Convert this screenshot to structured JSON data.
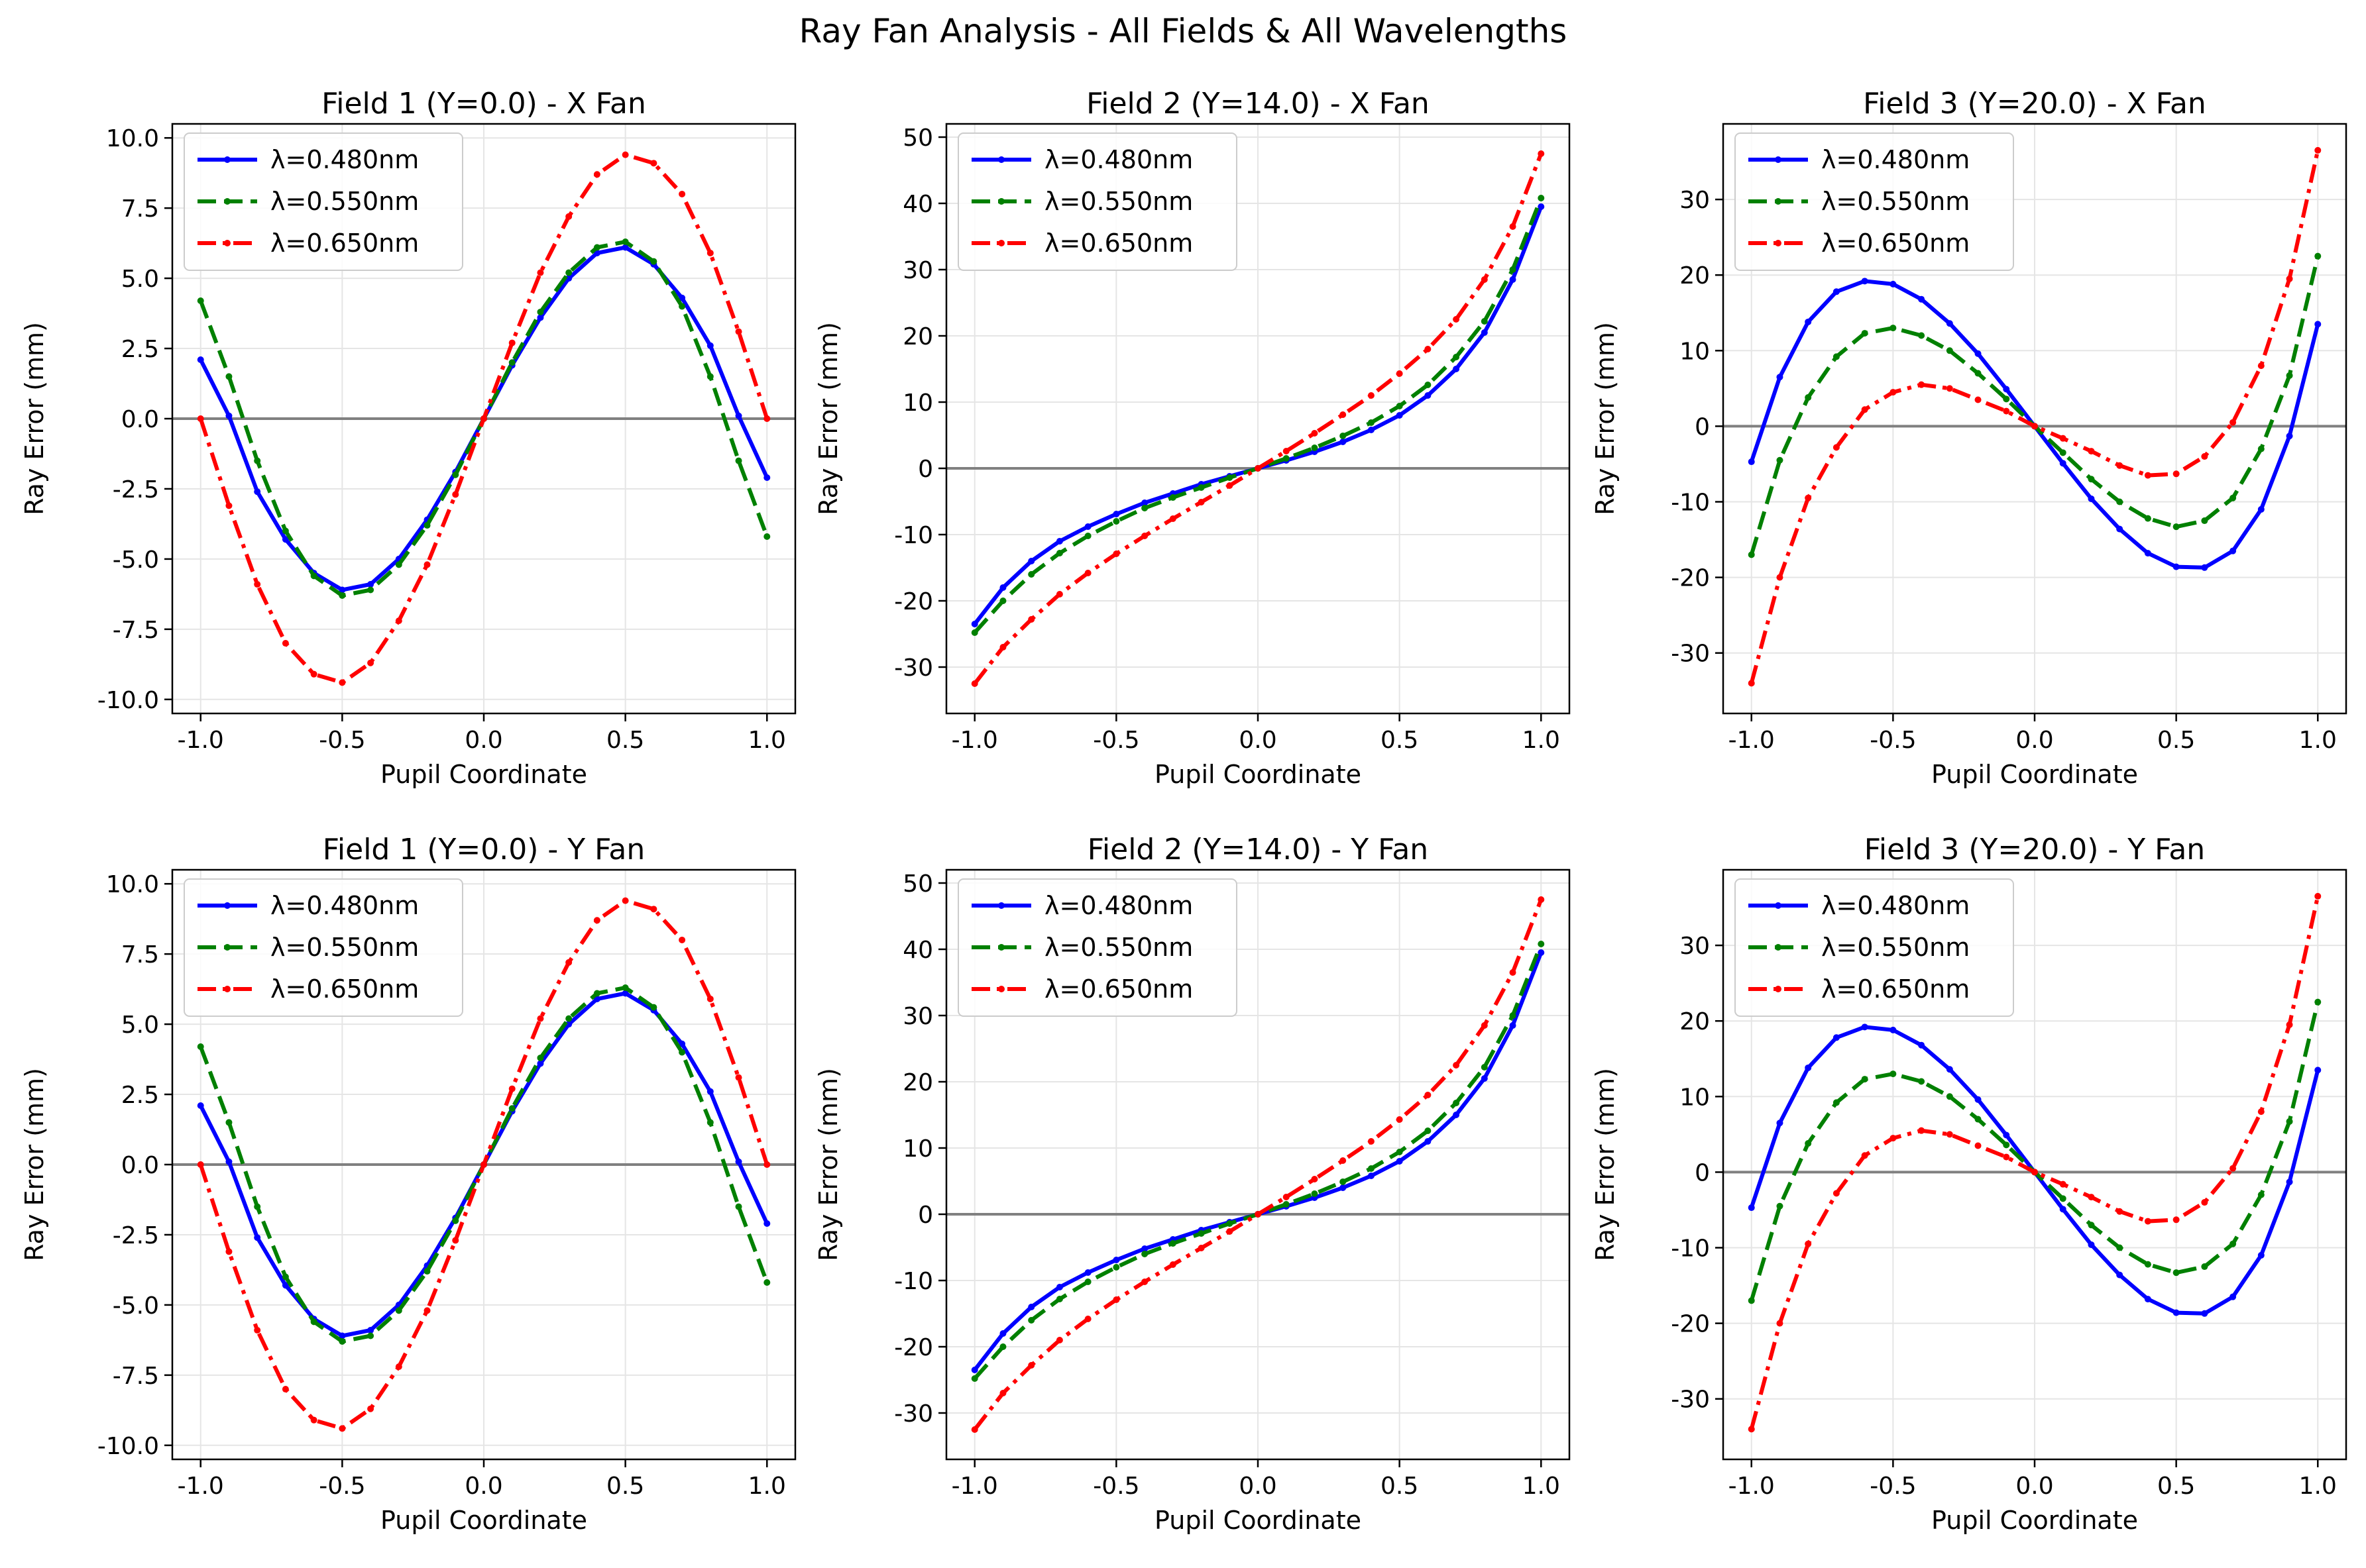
{
  "figure_title": "Ray Fan Analysis - All Fields & All Wavelengths",
  "colors": {
    "wl_480": "#0000ff",
    "wl_550": "#008000",
    "wl_650": "#ff0000",
    "zero_line": "#808080",
    "grid": "#e5e5e5"
  },
  "chart_data": [
    {
      "type": "line",
      "title": "Field 1 (Y=0.0) - X Fan",
      "xlabel": "Pupil Coordinate",
      "ylabel": "Ray Error (mm)",
      "xlim": [
        -1.1,
        1.1
      ],
      "ylim": [
        -10.5,
        10.5
      ],
      "xticks": [
        -1.0,
        -0.5,
        0.0,
        0.5,
        1.0
      ],
      "xtick_labels": [
        "-1.0",
        "-0.5",
        "0.0",
        "0.5",
        "1.0"
      ],
      "yticks": [
        -10,
        -7.5,
        -5,
        -2.5,
        0,
        2.5,
        5,
        7.5,
        10
      ],
      "ytick_labels": [
        "-10.0",
        "-7.5",
        "-5.0",
        "-2.5",
        "0.0",
        "2.5",
        "5.0",
        "7.5",
        "10.0"
      ],
      "grid": true,
      "legend": "top-left",
      "x": [
        -1.0,
        -0.9,
        -0.8,
        -0.7,
        -0.6,
        -0.5,
        -0.4,
        -0.3,
        -0.2,
        -0.1,
        0.0,
        0.1,
        0.2,
        0.3,
        0.4,
        0.5,
        0.6,
        0.7,
        0.8,
        0.9,
        1.0
      ],
      "series": [
        {
          "name": "λ=0.480nm",
          "color": "#0000ff",
          "dash": "solid",
          "values": [
            2.1,
            0.1,
            -2.6,
            -4.3,
            -5.5,
            -6.1,
            -5.9,
            -5.0,
            -3.6,
            -1.9,
            0.0,
            1.9,
            3.6,
            5.0,
            5.9,
            6.1,
            5.5,
            4.3,
            2.6,
            0.1,
            -2.1
          ]
        },
        {
          "name": "λ=0.550nm",
          "color": "#008000",
          "dash": "dashed",
          "values": [
            4.2,
            1.5,
            -1.5,
            -4.0,
            -5.6,
            -6.3,
            -6.1,
            -5.2,
            -3.8,
            -2.0,
            0.0,
            2.0,
            3.8,
            5.2,
            6.1,
            6.3,
            5.6,
            4.0,
            1.5,
            -1.5,
            -4.2
          ]
        },
        {
          "name": "λ=0.650nm",
          "color": "#ff0000",
          "dash": "dashdot",
          "values": [
            0.0,
            -3.1,
            -5.9,
            -8.0,
            -9.1,
            -9.4,
            -8.7,
            -7.2,
            -5.2,
            -2.7,
            0.0,
            2.7,
            5.2,
            7.2,
            8.7,
            9.4,
            9.1,
            8.0,
            5.9,
            3.1,
            0.0
          ]
        }
      ]
    },
    {
      "type": "line",
      "title": "Field 2 (Y=14.0) - X Fan",
      "xlabel": "Pupil Coordinate",
      "ylabel": "Ray Error (mm)",
      "xlim": [
        -1.1,
        1.1
      ],
      "ylim": [
        -37,
        52
      ],
      "xticks": [
        -1.0,
        -0.5,
        0.0,
        0.5,
        1.0
      ],
      "xtick_labels": [
        "-1.0",
        "-0.5",
        "0.0",
        "0.5",
        "1.0"
      ],
      "yticks": [
        -30,
        -20,
        -10,
        0,
        10,
        20,
        30,
        40,
        50
      ],
      "ytick_labels": [
        "-30",
        "-20",
        "-10",
        "0",
        "10",
        "20",
        "30",
        "40",
        "50"
      ],
      "grid": true,
      "legend": "top-left",
      "x": [
        -1.0,
        -0.9,
        -0.8,
        -0.7,
        -0.6,
        -0.5,
        -0.4,
        -0.3,
        -0.2,
        -0.1,
        0.0,
        0.1,
        0.2,
        0.3,
        0.4,
        0.5,
        0.6,
        0.7,
        0.8,
        0.9,
        1.0
      ],
      "series": [
        {
          "name": "λ=0.480nm",
          "color": "#0000ff",
          "dash": "solid",
          "values": [
            -23.5,
            -18.0,
            -14.0,
            -11.0,
            -8.8,
            -6.9,
            -5.2,
            -3.8,
            -2.4,
            -1.2,
            0.0,
            1.2,
            2.5,
            4.0,
            5.8,
            8.0,
            11.0,
            15.0,
            20.5,
            28.5,
            39.5
          ]
        },
        {
          "name": "λ=0.550nm",
          "color": "#008000",
          "dash": "dashed",
          "values": [
            -24.8,
            -20.0,
            -16.0,
            -12.8,
            -10.2,
            -8.0,
            -6.0,
            -4.4,
            -2.9,
            -1.4,
            0.0,
            1.5,
            3.1,
            4.9,
            6.9,
            9.4,
            12.6,
            16.8,
            22.2,
            30.0,
            40.8
          ]
        },
        {
          "name": "λ=0.650nm",
          "color": "#ff0000",
          "dash": "dashdot",
          "values": [
            -32.5,
            -27.0,
            -22.8,
            -19.0,
            -15.8,
            -12.9,
            -10.2,
            -7.6,
            -5.1,
            -2.6,
            0.0,
            2.6,
            5.3,
            8.1,
            11.0,
            14.3,
            18.0,
            22.5,
            28.5,
            36.5,
            47.5
          ]
        }
      ]
    },
    {
      "type": "line",
      "title": "Field 3 (Y=20.0) - X Fan",
      "xlabel": "Pupil Coordinate",
      "ylabel": "Ray Error (mm)",
      "xlim": [
        -1.1,
        1.1
      ],
      "ylim": [
        -38,
        40
      ],
      "xticks": [
        -1.0,
        -0.5,
        0.0,
        0.5,
        1.0
      ],
      "xtick_labels": [
        "-1.0",
        "-0.5",
        "0.0",
        "0.5",
        "1.0"
      ],
      "yticks": [
        -30,
        -20,
        -10,
        0,
        10,
        20,
        30
      ],
      "ytick_labels": [
        "-30",
        "-20",
        "-10",
        "0",
        "10",
        "20",
        "30"
      ],
      "grid": true,
      "legend": "top-left",
      "x": [
        -1.0,
        -0.9,
        -0.8,
        -0.7,
        -0.6,
        -0.5,
        -0.4,
        -0.3,
        -0.2,
        -0.1,
        0.0,
        0.1,
        0.2,
        0.3,
        0.4,
        0.5,
        0.6,
        0.7,
        0.8,
        0.9,
        1.0
      ],
      "series": [
        {
          "name": "λ=0.480nm",
          "color": "#0000ff",
          "dash": "solid",
          "values": [
            -4.7,
            6.5,
            13.8,
            17.8,
            19.2,
            18.8,
            16.8,
            13.6,
            9.6,
            4.9,
            0.0,
            -4.9,
            -9.6,
            -13.6,
            -16.8,
            -18.6,
            -18.7,
            -16.5,
            -11.0,
            -1.3,
            13.5
          ]
        },
        {
          "name": "λ=0.550nm",
          "color": "#008000",
          "dash": "dashed",
          "values": [
            -17.0,
            -4.5,
            3.8,
            9.2,
            12.3,
            13.0,
            12.0,
            10.0,
            7.0,
            3.6,
            0.0,
            -3.5,
            -7.0,
            -10.0,
            -12.2,
            -13.3,
            -12.5,
            -9.5,
            -3.0,
            6.7,
            22.5
          ]
        },
        {
          "name": "λ=0.650nm",
          "color": "#ff0000",
          "dash": "dashdot",
          "values": [
            -34.0,
            -20.0,
            -9.5,
            -2.8,
            2.2,
            4.5,
            5.5,
            5.0,
            3.5,
            2.0,
            0.0,
            -1.6,
            -3.3,
            -5.2,
            -6.5,
            -6.3,
            -4.0,
            0.5,
            8.0,
            19.5,
            36.5
          ]
        }
      ]
    },
    {
      "type": "line",
      "title": "Field 1 (Y=0.0) - Y Fan",
      "xlabel": "Pupil Coordinate",
      "ylabel": "Ray Error (mm)",
      "xlim": [
        -1.1,
        1.1
      ],
      "ylim": [
        -10.5,
        10.5
      ],
      "xticks": [
        -1.0,
        -0.5,
        0.0,
        0.5,
        1.0
      ],
      "xtick_labels": [
        "-1.0",
        "-0.5",
        "0.0",
        "0.5",
        "1.0"
      ],
      "yticks": [
        -10,
        -7.5,
        -5,
        -2.5,
        0,
        2.5,
        5,
        7.5,
        10
      ],
      "ytick_labels": [
        "-10.0",
        "-7.5",
        "-5.0",
        "-2.5",
        "0.0",
        "2.5",
        "5.0",
        "7.5",
        "10.0"
      ],
      "grid": true,
      "legend": "top-left",
      "x": [
        -1.0,
        -0.9,
        -0.8,
        -0.7,
        -0.6,
        -0.5,
        -0.4,
        -0.3,
        -0.2,
        -0.1,
        0.0,
        0.1,
        0.2,
        0.3,
        0.4,
        0.5,
        0.6,
        0.7,
        0.8,
        0.9,
        1.0
      ],
      "series": [
        {
          "name": "λ=0.480nm",
          "color": "#0000ff",
          "dash": "solid",
          "values": [
            2.1,
            0.1,
            -2.6,
            -4.3,
            -5.5,
            -6.1,
            -5.9,
            -5.0,
            -3.6,
            -1.9,
            0.0,
            1.9,
            3.6,
            5.0,
            5.9,
            6.1,
            5.5,
            4.3,
            2.6,
            0.1,
            -2.1
          ]
        },
        {
          "name": "λ=0.550nm",
          "color": "#008000",
          "dash": "dashed",
          "values": [
            4.2,
            1.5,
            -1.5,
            -4.0,
            -5.6,
            -6.3,
            -6.1,
            -5.2,
            -3.8,
            -2.0,
            0.0,
            2.0,
            3.8,
            5.2,
            6.1,
            6.3,
            5.6,
            4.0,
            1.5,
            -1.5,
            -4.2
          ]
        },
        {
          "name": "λ=0.650nm",
          "color": "#ff0000",
          "dash": "dashdot",
          "values": [
            0.0,
            -3.1,
            -5.9,
            -8.0,
            -9.1,
            -9.4,
            -8.7,
            -7.2,
            -5.2,
            -2.7,
            0.0,
            2.7,
            5.2,
            7.2,
            8.7,
            9.4,
            9.1,
            8.0,
            5.9,
            3.1,
            0.0
          ]
        }
      ]
    },
    {
      "type": "line",
      "title": "Field 2 (Y=14.0) - Y Fan",
      "xlabel": "Pupil Coordinate",
      "ylabel": "Ray Error (mm)",
      "xlim": [
        -1.1,
        1.1
      ],
      "ylim": [
        -37,
        52
      ],
      "xticks": [
        -1.0,
        -0.5,
        0.0,
        0.5,
        1.0
      ],
      "xtick_labels": [
        "-1.0",
        "-0.5",
        "0.0",
        "0.5",
        "1.0"
      ],
      "yticks": [
        -30,
        -20,
        -10,
        0,
        10,
        20,
        30,
        40,
        50
      ],
      "ytick_labels": [
        "-30",
        "-20",
        "-10",
        "0",
        "10",
        "20",
        "30",
        "40",
        "50"
      ],
      "grid": true,
      "legend": "top-left",
      "x": [
        -1.0,
        -0.9,
        -0.8,
        -0.7,
        -0.6,
        -0.5,
        -0.4,
        -0.3,
        -0.2,
        -0.1,
        0.0,
        0.1,
        0.2,
        0.3,
        0.4,
        0.5,
        0.6,
        0.7,
        0.8,
        0.9,
        1.0
      ],
      "series": [
        {
          "name": "λ=0.480nm",
          "color": "#0000ff",
          "dash": "solid",
          "values": [
            -23.5,
            -18.0,
            -14.0,
            -11.0,
            -8.8,
            -6.9,
            -5.2,
            -3.8,
            -2.4,
            -1.2,
            0.0,
            1.2,
            2.5,
            4.0,
            5.8,
            8.0,
            11.0,
            15.0,
            20.5,
            28.5,
            39.5
          ]
        },
        {
          "name": "λ=0.550nm",
          "color": "#008000",
          "dash": "dashed",
          "values": [
            -24.8,
            -20.0,
            -16.0,
            -12.8,
            -10.2,
            -8.0,
            -6.0,
            -4.4,
            -2.9,
            -1.4,
            0.0,
            1.5,
            3.1,
            4.9,
            6.9,
            9.4,
            12.6,
            16.8,
            22.2,
            30.0,
            40.8
          ]
        },
        {
          "name": "λ=0.650nm",
          "color": "#ff0000",
          "dash": "dashdot",
          "values": [
            -32.5,
            -27.0,
            -22.8,
            -19.0,
            -15.8,
            -12.9,
            -10.2,
            -7.6,
            -5.1,
            -2.6,
            0.0,
            2.6,
            5.3,
            8.1,
            11.0,
            14.3,
            18.0,
            22.5,
            28.5,
            36.5,
            47.5
          ]
        }
      ]
    },
    {
      "type": "line",
      "title": "Field 3 (Y=20.0) - Y Fan",
      "xlabel": "Pupil Coordinate",
      "ylabel": "Ray Error (mm)",
      "xlim": [
        -1.1,
        1.1
      ],
      "ylim": [
        -38,
        40
      ],
      "xticks": [
        -1.0,
        -0.5,
        0.0,
        0.5,
        1.0
      ],
      "xtick_labels": [
        "-1.0",
        "-0.5",
        "0.0",
        "0.5",
        "1.0"
      ],
      "yticks": [
        -30,
        -20,
        -10,
        0,
        10,
        20,
        30
      ],
      "ytick_labels": [
        "-30",
        "-20",
        "-10",
        "0",
        "10",
        "20",
        "30"
      ],
      "grid": true,
      "legend": "top-left",
      "x": [
        -1.0,
        -0.9,
        -0.8,
        -0.7,
        -0.6,
        -0.5,
        -0.4,
        -0.3,
        -0.2,
        -0.1,
        0.0,
        0.1,
        0.2,
        0.3,
        0.4,
        0.5,
        0.6,
        0.7,
        0.8,
        0.9,
        1.0
      ],
      "series": [
        {
          "name": "λ=0.480nm",
          "color": "#0000ff",
          "dash": "solid",
          "values": [
            -4.7,
            6.5,
            13.8,
            17.8,
            19.2,
            18.8,
            16.8,
            13.6,
            9.6,
            4.9,
            0.0,
            -4.9,
            -9.6,
            -13.6,
            -16.8,
            -18.6,
            -18.7,
            -16.5,
            -11.0,
            -1.3,
            13.5
          ]
        },
        {
          "name": "λ=0.550nm",
          "color": "#008000",
          "dash": "dashed",
          "values": [
            -17.0,
            -4.5,
            3.8,
            9.2,
            12.3,
            13.0,
            12.0,
            10.0,
            7.0,
            3.6,
            0.0,
            -3.5,
            -7.0,
            -10.0,
            -12.2,
            -13.3,
            -12.5,
            -9.5,
            -3.0,
            6.7,
            22.5
          ]
        },
        {
          "name": "λ=0.650nm",
          "color": "#ff0000",
          "dash": "dashdot",
          "values": [
            -34.0,
            -20.0,
            -9.5,
            -2.8,
            2.2,
            4.5,
            5.5,
            5.0,
            3.5,
            2.0,
            0.0,
            -1.6,
            -3.3,
            -5.2,
            -6.5,
            -6.3,
            -4.0,
            0.5,
            8.0,
            19.5,
            36.5
          ]
        }
      ]
    }
  ]
}
